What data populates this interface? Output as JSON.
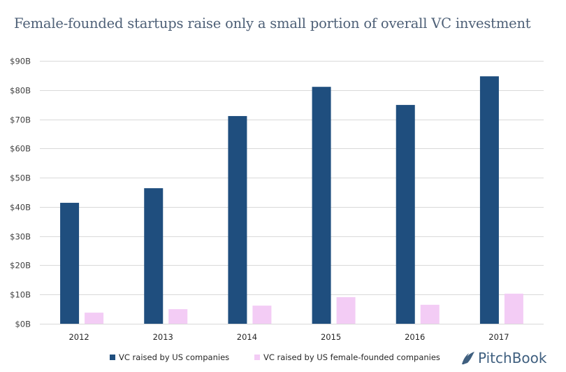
{
  "chart_data": {
    "type": "bar",
    "title": "Female-founded startups raise only a small portion of overall VC investment",
    "xlabel": "",
    "ylabel": "",
    "categories": [
      "2012",
      "2013",
      "2014",
      "2015",
      "2016",
      "2017"
    ],
    "series": [
      {
        "name": "VC raised by US companies",
        "color": "#1f4e7e",
        "values": [
          41.4,
          46.4,
          71.1,
          81.1,
          74.9,
          84.7
        ]
      },
      {
        "name": "VC raised by US female-founded companies",
        "color": "#f3ccf5",
        "values": [
          3.8,
          5.0,
          6.2,
          9.1,
          6.5,
          10.3
        ]
      }
    ],
    "ylim": [
      0,
      90
    ],
    "yticks": [
      0,
      10,
      20,
      30,
      40,
      50,
      60,
      70,
      80,
      90
    ],
    "ytick_labels": [
      "$0B",
      "$10B",
      "$20B",
      "$30B",
      "$40B",
      "$50B",
      "$60B",
      "$70B",
      "$80B",
      "$90B"
    ],
    "grid": true,
    "gridline_color": "#d9d9d9",
    "legend_position": "bottom"
  },
  "branding": {
    "logo_text": "PitchBook",
    "logo_color": "#3f5f7f"
  }
}
